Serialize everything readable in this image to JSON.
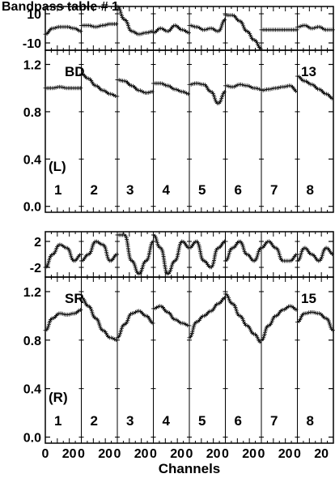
{
  "title": "Bandpass table # 1",
  "xlabel": "Channels",
  "chart_data": [
    {
      "type": "line",
      "id": "L-phase",
      "ylim": [
        -15,
        15
      ],
      "yticks": [
        "10",
        "-10"
      ],
      "ytick_values": [
        10,
        -10
      ],
      "x": [
        0,
        6,
        12,
        18,
        24,
        30
      ],
      "series": [
        {
          "values": [
            -4,
            0,
            1,
            1,
            0,
            -2
          ]
        },
        {
          "values": [
            2,
            2,
            1,
            2,
            3,
            3
          ]
        },
        {
          "values": [
            15,
            6,
            -2,
            -4,
            -3,
            -2
          ]
        },
        {
          "values": [
            -3,
            0,
            -2,
            2,
            -1,
            -3
          ]
        },
        {
          "values": [
            2,
            1,
            -1,
            0,
            -2,
            6
          ]
        },
        {
          "values": [
            9,
            9,
            5,
            -2,
            -8,
            -14
          ]
        },
        {
          "values": [
            -1,
            -1,
            -1,
            -1,
            -1,
            -1
          ]
        },
        {
          "values": [
            1,
            2,
            0,
            1,
            -1,
            -1
          ]
        }
      ]
    },
    {
      "type": "line",
      "id": "L-amp",
      "ylim": [
        -0.05,
        1.32
      ],
      "yticks": [
        "1.2",
        "0.8",
        "0.4",
        "0.0"
      ],
      "ytick_values": [
        1.2,
        0.8,
        0.4,
        0.0
      ],
      "x": [
        0,
        6,
        12,
        18,
        24,
        30
      ],
      "labels": [
        "BD",
        "13",
        "(L)"
      ],
      "panel_numbers": [
        "1",
        "2",
        "3",
        "4",
        "5",
        "6",
        "7",
        "8"
      ],
      "series": [
        {
          "values": [
            1.0,
            1.0,
            1.01,
            1.0,
            1.0,
            1.0
          ]
        },
        {
          "values": [
            1.12,
            1.08,
            1.02,
            0.98,
            0.95,
            0.93
          ]
        },
        {
          "values": [
            1.07,
            1.06,
            1.02,
            0.98,
            0.96,
            0.97
          ]
        },
        {
          "values": [
            1.04,
            1.04,
            1.02,
            0.99,
            0.97,
            0.95
          ]
        },
        {
          "values": [
            1.03,
            1.04,
            1.03,
            0.97,
            0.87,
            0.97
          ]
        },
        {
          "values": [
            1.02,
            1.01,
            1.03,
            1.02,
            1.0,
            0.99
          ]
        },
        {
          "values": [
            0.98,
            0.99,
            1.0,
            1.01,
            1.02,
            0.97
          ]
        },
        {
          "values": [
            1.1,
            1.06,
            1.03,
            0.99,
            0.95,
            0.91
          ]
        }
      ]
    },
    {
      "type": "line",
      "id": "R-phase",
      "ylim": [
        -3.5,
        3.5
      ],
      "yticks": [
        "2",
        "-2"
      ],
      "ytick_values": [
        2,
        -2
      ],
      "x": [
        0,
        6,
        12,
        18,
        24,
        30
      ],
      "series": [
        {
          "values": [
            -2,
            0,
            1.5,
            1,
            -1,
            0
          ]
        },
        {
          "values": [
            -1,
            0,
            2,
            1.5,
            -1,
            0
          ]
        },
        {
          "values": [
            3,
            3,
            -1,
            -3,
            -1,
            2
          ]
        },
        {
          "values": [
            3,
            1,
            -3,
            -1,
            2,
            1
          ]
        },
        {
          "values": [
            1,
            2,
            -1,
            -2,
            1,
            2
          ]
        },
        {
          "values": [
            -1,
            1,
            2,
            0,
            -1,
            1
          ]
        },
        {
          "values": [
            1,
            2,
            1,
            -1,
            -1,
            0
          ]
        },
        {
          "values": [
            -1,
            1,
            0,
            -1,
            1,
            0
          ]
        }
      ]
    },
    {
      "type": "line",
      "id": "R-amp",
      "ylim": [
        -0.05,
        1.32
      ],
      "yticks": [
        "1.2",
        "0.8",
        "0.4",
        "0.0"
      ],
      "ytick_values": [
        1.2,
        0.8,
        0.4,
        0.0
      ],
      "x": [
        0,
        6,
        12,
        18,
        24,
        30
      ],
      "labels": [
        "SR",
        "15",
        "(R)"
      ],
      "panel_numbers": [
        "1",
        "2",
        "3",
        "4",
        "5",
        "6",
        "7",
        "8"
      ],
      "series": [
        {
          "values": [
            0.88,
            0.98,
            1.02,
            1.01,
            1.02,
            1.05
          ]
        },
        {
          "values": [
            1.15,
            1.08,
            0.98,
            0.88,
            0.82,
            0.8
          ]
        },
        {
          "values": [
            0.82,
            0.93,
            1.02,
            1.04,
            1.0,
            0.94
          ]
        },
        {
          "values": [
            1.06,
            1.08,
            1.03,
            0.97,
            0.94,
            0.92
          ]
        },
        {
          "values": [
            0.82,
            0.95,
            1.0,
            1.04,
            1.1,
            1.15
          ]
        },
        {
          "values": [
            1.18,
            1.1,
            1.0,
            0.92,
            0.85,
            0.78
          ]
        },
        {
          "values": [
            0.8,
            0.92,
            1.0,
            1.05,
            1.08,
            1.05
          ]
        },
        {
          "values": [
            0.95,
            1.02,
            1.03,
            1.02,
            0.98,
            0.88
          ]
        }
      ]
    }
  ],
  "xticks": [
    "0",
    "20"
  ],
  "xtick_values": [
    0,
    20
  ],
  "xrange": [
    0,
    30
  ]
}
